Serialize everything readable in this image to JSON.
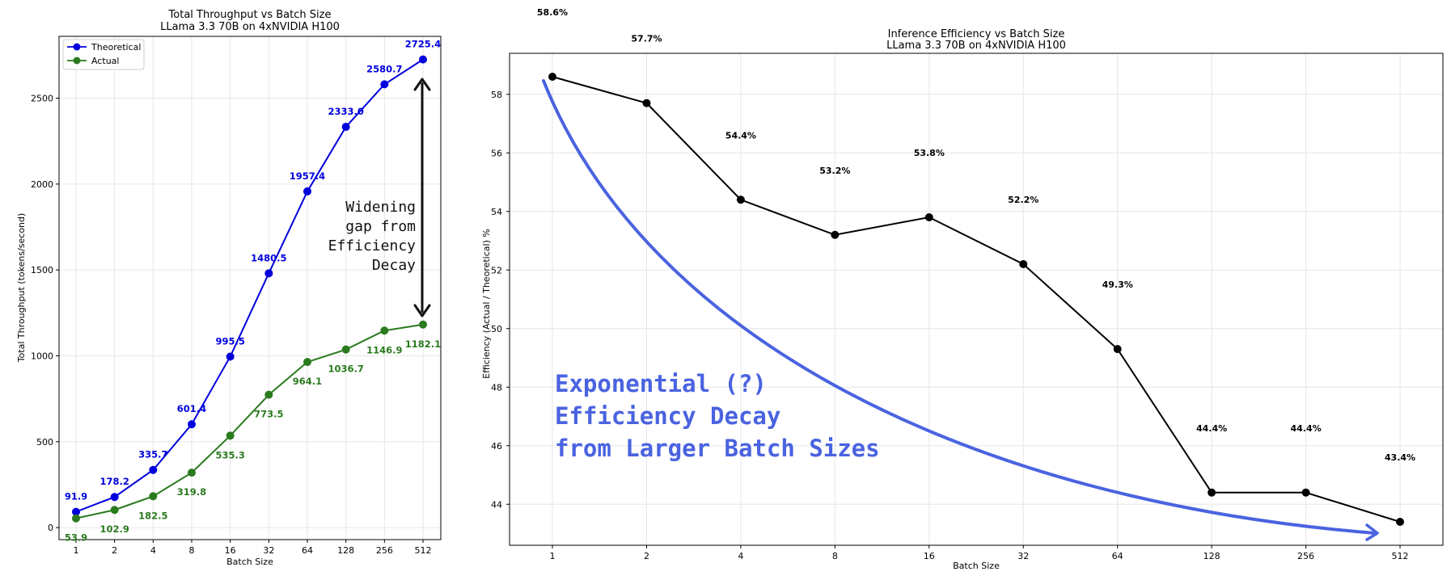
{
  "chart_data": [
    {
      "type": "line",
      "title": "Total Throughput vs Batch Size",
      "subtitle": "LLama 3.3 70B on 4xNVIDIA H100",
      "xlabel": "Batch Size",
      "ylabel": "Total Throughput (tokens/second)",
      "categories": [
        "1",
        "2",
        "4",
        "8",
        "16",
        "32",
        "64",
        "128",
        "256",
        "512"
      ],
      "yticks": [
        0,
        500,
        1000,
        1500,
        2000,
        2500
      ],
      "ylim": [
        -70,
        2860
      ],
      "grid": true,
      "legend": "top-left",
      "series": [
        {
          "name": "Theoretical",
          "color": "#0000dd",
          "values": [
            91.9,
            178.2,
            335.7,
            601.4,
            995.5,
            1480.5,
            1957.4,
            2333.0,
            2580.7,
            2725.4
          ],
          "labels": [
            "91.9",
            "178.2",
            "335.7",
            "601.4",
            "995.5",
            "1480.5",
            "1957.4",
            "2333.0",
            "2580.7",
            "2725.4"
          ]
        },
        {
          "name": "Actual",
          "color": "#2a7a1e",
          "values": [
            53.9,
            102.9,
            182.5,
            319.8,
            535.3,
            773.5,
            964.1,
            1036.7,
            1146.9,
            1182.1
          ],
          "labels": [
            "53.9",
            "102.9",
            "182.5",
            "319.8",
            "535.3",
            "773.5",
            "964.1",
            "1036.7",
            "1146.9",
            "1182.1"
          ]
        }
      ],
      "annotation": {
        "lines": [
          "Widening",
          "gap from",
          "Efficiency",
          "Decay"
        ],
        "arrow": "double-headed between Theoretical and Actual at batch 512"
      }
    },
    {
      "type": "line",
      "title": "Inference Efficiency vs Batch Size",
      "subtitle": "LLama 3.3 70B on 4xNVIDIA H100",
      "xlabel": "Batch Size",
      "ylabel": "Efficiency (Actual / Theoretical) %",
      "categories": [
        "1",
        "2",
        "4",
        "8",
        "16",
        "32",
        "64",
        "128",
        "256",
        "512"
      ],
      "yticks": [
        44,
        46,
        48,
        50,
        52,
        54,
        56,
        58
      ],
      "ylim": [
        42.6,
        59.4
      ],
      "grid": true,
      "series": [
        {
          "name": "Efficiency",
          "color": "#000000",
          "values": [
            58.6,
            57.7,
            54.4,
            53.2,
            53.8,
            52.2,
            49.3,
            44.4,
            44.4,
            43.4
          ],
          "labels": [
            "58.6%",
            "57.7%",
            "54.4%",
            "53.2%",
            "53.8%",
            "52.2%",
            "49.3%",
            "44.4%",
            "44.4%",
            "43.4%"
          ]
        }
      ],
      "annotation": {
        "lines": [
          "Exponential (?)",
          "Efficiency Decay",
          "from Larger Batch Sizes"
        ],
        "color": "#4a63e0",
        "curve": "hand-drawn decay arrow from batch 1 toward batch 512"
      }
    }
  ]
}
